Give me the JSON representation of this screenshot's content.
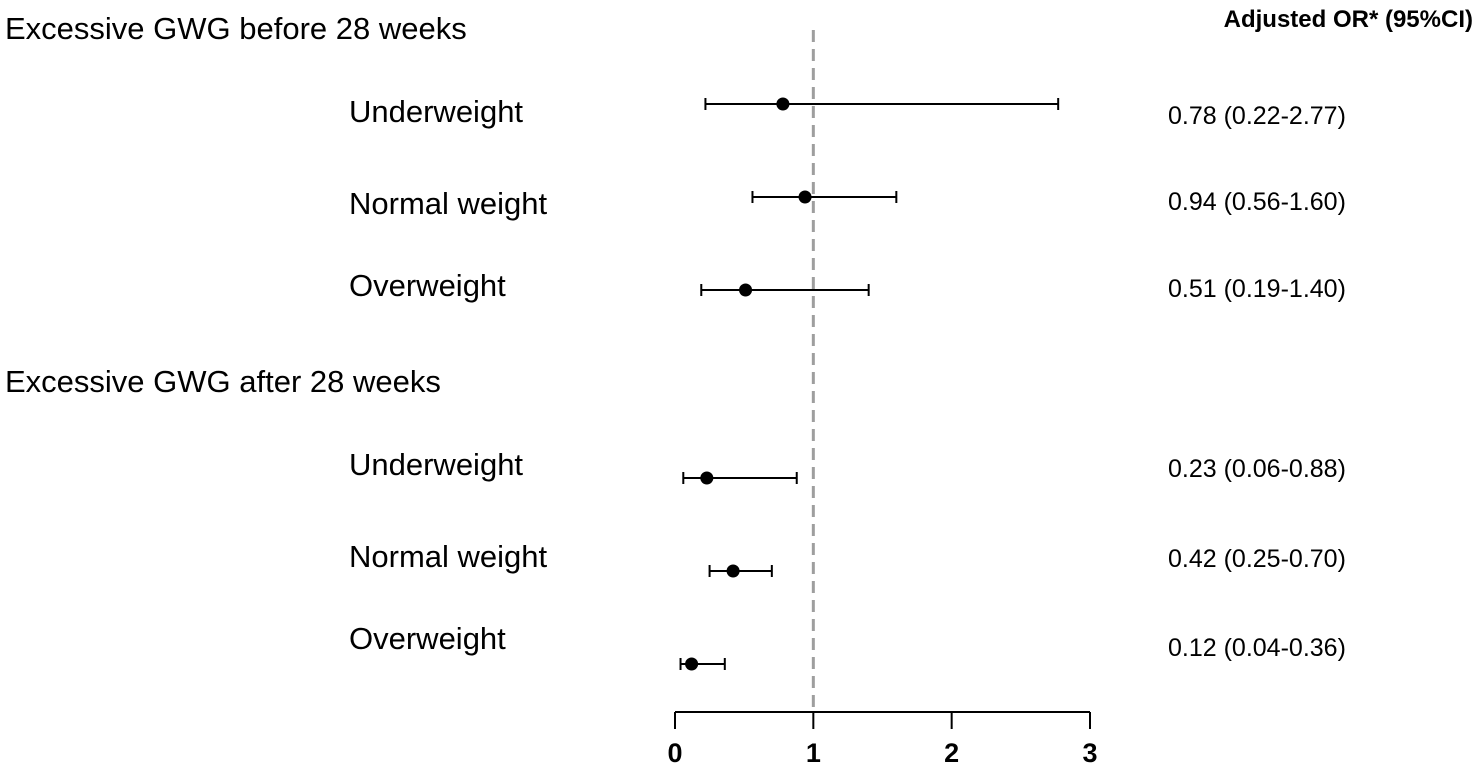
{
  "chart_data": {
    "type": "forest",
    "title": "",
    "column_header": "Adjusted OR* (95%CI)",
    "reference_line": 1,
    "xlim": [
      0,
      3
    ],
    "x_ticks": [
      0,
      1,
      2,
      3
    ],
    "groups": [
      {
        "label": "Excessive GWG before 28 weeks",
        "rows": [
          {
            "label": "Underweight",
            "or": 0.78,
            "lower": 0.22,
            "upper": 2.77,
            "text": "0.78 (0.22-2.77)"
          },
          {
            "label": "Normal weight",
            "or": 0.94,
            "lower": 0.56,
            "upper": 1.6,
            "text": "0.94 (0.56-1.60)"
          },
          {
            "label": "Overweight",
            "or": 0.51,
            "lower": 0.19,
            "upper": 1.4,
            "text": "0.51 (0.19-1.40)"
          }
        ]
      },
      {
        "label": "Excessive GWG after 28 weeks",
        "rows": [
          {
            "label": "Underweight",
            "or": 0.23,
            "lower": 0.06,
            "upper": 0.88,
            "text": "0.23 (0.06-0.88)"
          },
          {
            "label": "Normal weight",
            "or": 0.42,
            "lower": 0.25,
            "upper": 0.7,
            "text": "0.42 (0.25-0.70)"
          },
          {
            "label": "Overweight",
            "or": 0.12,
            "lower": 0.04,
            "upper": 0.36,
            "text": "0.12 (0.04-0.36)"
          }
        ]
      }
    ]
  }
}
